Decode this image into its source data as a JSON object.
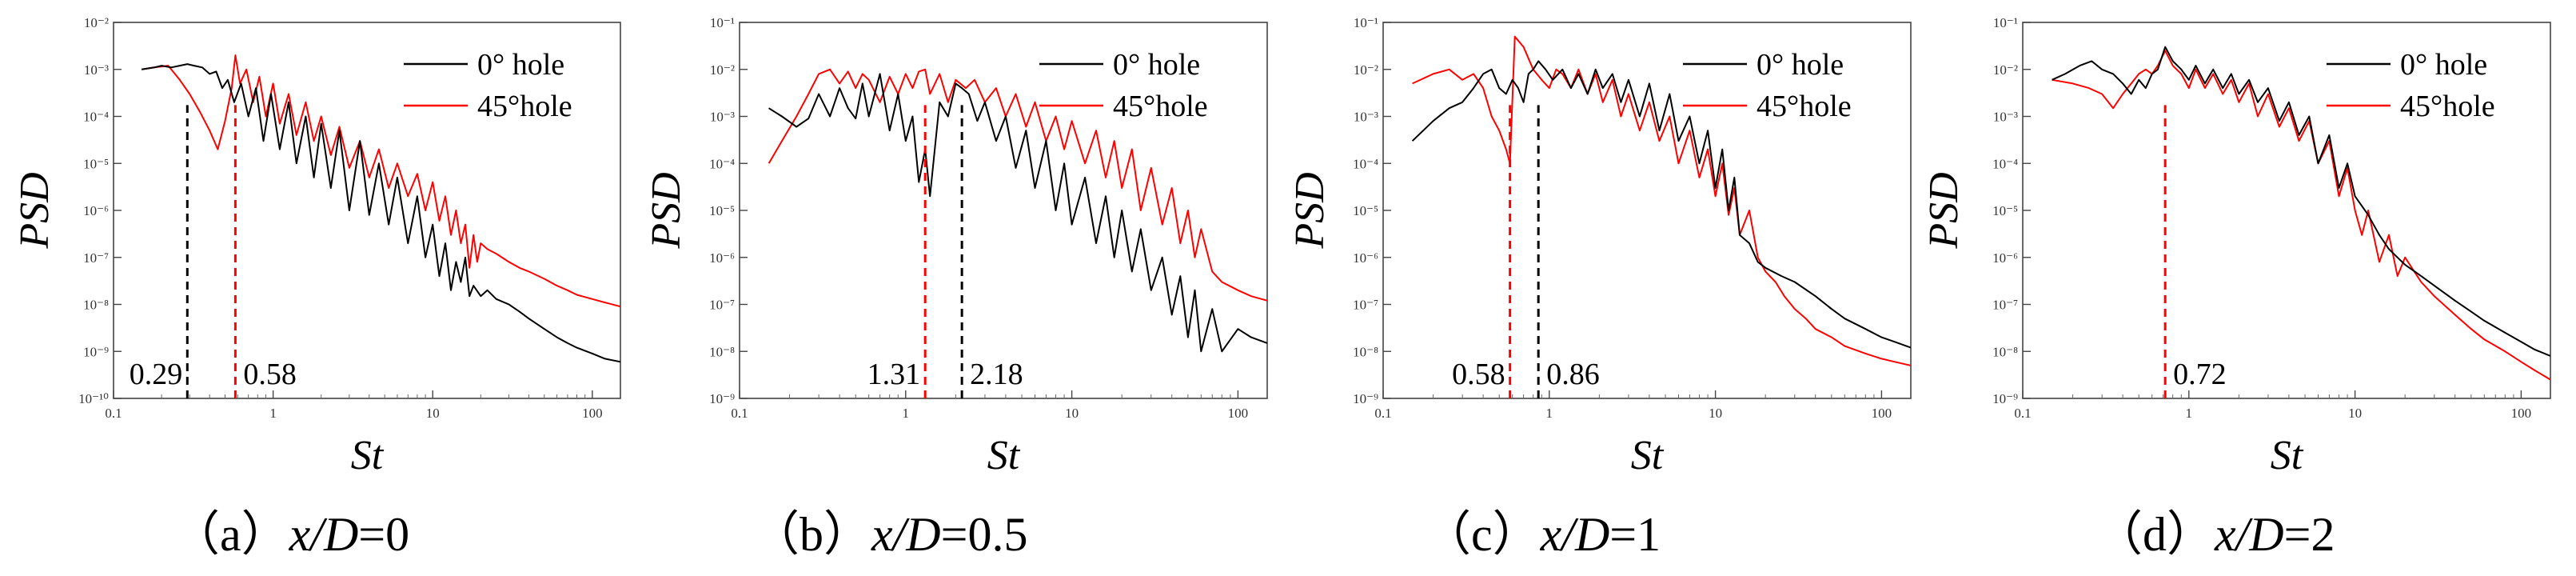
{
  "chart_data": [
    {
      "type": "line",
      "panel": "a",
      "caption": {
        "prefix": "（a）",
        "var": "x/D",
        "eq": "=0"
      },
      "xlabel": "St",
      "ylabel": "PSD",
      "xscale": "log",
      "yscale": "log",
      "xlim": [
        0.1,
        150
      ],
      "ylim": [
        1e-10,
        0.01
      ],
      "xticks": [
        "0.1",
        "1",
        "10",
        "100"
      ],
      "yticks": [
        "10⁻¹⁰",
        "10⁻⁹",
        "10⁻⁸",
        "10⁻⁷",
        "10⁻⁶",
        "10⁻⁵",
        "10⁻⁴",
        "10⁻³",
        "10⁻²"
      ],
      "series": [
        {
          "name": "0° hole",
          "color": "#000000",
          "x": [
            0.15,
            0.18,
            0.2,
            0.23,
            0.26,
            0.29,
            0.32,
            0.36,
            0.4,
            0.44,
            0.48,
            0.52,
            0.57,
            0.63,
            0.7,
            0.78,
            0.87,
            0.97,
            1.1,
            1.25,
            1.4,
            1.6,
            1.8,
            2.0,
            2.3,
            2.6,
            3.0,
            3.5,
            4.0,
            4.6,
            5.3,
            6.0,
            7.0,
            8.0,
            9.0,
            10.0,
            11.0,
            12.0,
            13.0,
            14.0,
            15.0,
            16.0,
            17.0,
            18.0,
            20.0,
            22.0,
            25.0,
            30.0,
            35.0,
            40.0,
            50.0,
            60.0,
            70.0,
            80.0,
            100.0,
            120.0,
            150.0
          ],
          "y": [
            0.001,
            0.0011,
            0.0012,
            0.0011,
            0.0012,
            0.0013,
            0.0012,
            0.0011,
            0.0008,
            0.0009,
            0.0004,
            0.0006,
            0.0002,
            0.0005,
            0.0001,
            0.0004,
            3e-05,
            0.0003,
            2e-05,
            0.0002,
            1e-05,
            0.0001,
            5e-06,
            7e-05,
            3e-06,
            5e-05,
            1e-06,
            3e-05,
            8e-07,
            1e-05,
            5e-07,
            5e-06,
            2e-07,
            2e-06,
            1e-07,
            5e-07,
            4e-08,
            2e-07,
            2e-08,
            8e-08,
            3e-08,
            1e-07,
            1.5e-08,
            2.5e-08,
            1.5e-08,
            2e-08,
            1.3e-08,
            1e-08,
            7e-09,
            5e-09,
            3e-09,
            2e-09,
            1.5e-09,
            1.2e-09,
            9e-10,
            7e-10,
            6e-10
          ]
        },
        {
          "name": "45°hole",
          "color": "#ff0000",
          "x": [
            0.15,
            0.18,
            0.22,
            0.26,
            0.3,
            0.35,
            0.4,
            0.45,
            0.5,
            0.55,
            0.58,
            0.62,
            0.68,
            0.75,
            0.82,
            0.9,
            1.0,
            1.1,
            1.25,
            1.4,
            1.6,
            1.8,
            2.0,
            2.3,
            2.6,
            3.0,
            3.5,
            4.0,
            4.6,
            5.3,
            6.0,
            7.0,
            8.0,
            9.0,
            10.0,
            11.0,
            12.0,
            13.0,
            14.0,
            15.0,
            16.0,
            17.0,
            18.0,
            19.0,
            20.0,
            22.0,
            25.0,
            30.0,
            35.0,
            40.0,
            50.0,
            60.0,
            70.0,
            80.0,
            100.0,
            120.0,
            150.0
          ],
          "y": [
            0.001,
            0.0011,
            0.0012,
            0.0006,
            0.0003,
            0.00012,
            5e-05,
            2e-05,
            8e-05,
            0.0004,
            0.002,
            0.0005,
            0.001,
            0.0002,
            0.0007,
            0.0001,
            0.0005,
            7e-05,
            0.0003,
            4e-05,
            0.0002,
            3e-05,
            0.0001,
            1.5e-05,
            6e-05,
            8e-06,
            3e-05,
            5e-06,
            2e-05,
            3e-06,
            1e-05,
            2e-06,
            6e-06,
            1e-06,
            4e-06,
            6e-07,
            2e-06,
            3e-07,
            1e-06,
            2e-07,
            5e-07,
            6e-08,
            3e-07,
            8e-08,
            2e-07,
            1.5e-07,
            1.2e-07,
            8e-08,
            6e-08,
            5e-08,
            3.5e-08,
            2.5e-08,
            2e-08,
            1.6e-08,
            1.3e-08,
            1.1e-08,
            9e-09
          ]
        }
      ],
      "markers": [
        {
          "x": 0.29,
          "label": "0.29",
          "color": "#000000"
        },
        {
          "x": 0.58,
          "label": "0.58",
          "color": "#ff0000"
        }
      ]
    },
    {
      "type": "line",
      "panel": "b",
      "caption": {
        "prefix": "（b）",
        "var": "x/D",
        "eq": "=0.5"
      },
      "xlabel": "St",
      "ylabel": "PSD",
      "xscale": "log",
      "yscale": "log",
      "xlim": [
        0.1,
        150
      ],
      "ylim": [
        1e-09,
        0.1
      ],
      "xticks": [
        "0.1",
        "1",
        "10",
        "100"
      ],
      "yticks": [
        "10⁻⁹",
        "10⁻⁸",
        "10⁻⁷",
        "10⁻⁶",
        "10⁻⁵",
        "10⁻⁴",
        "10⁻³",
        "10⁻²",
        "10⁻¹"
      ],
      "series": [
        {
          "name": "0° hole",
          "color": "#000000",
          "x": [
            0.15,
            0.18,
            0.22,
            0.26,
            0.3,
            0.35,
            0.4,
            0.45,
            0.5,
            0.55,
            0.6,
            0.7,
            0.8,
            0.9,
            1.0,
            1.1,
            1.2,
            1.31,
            1.4,
            1.6,
            1.8,
            2.0,
            2.18,
            2.4,
            2.7,
            3.0,
            3.5,
            4.0,
            4.6,
            5.3,
            6.0,
            7.0,
            8.0,
            9.0,
            10.0,
            12.0,
            14.0,
            16.0,
            18.0,
            20.0,
            23.0,
            26.0,
            30.0,
            35.0,
            40.0,
            45.0,
            50.0,
            55.0,
            60.0,
            70.0,
            80.0,
            100.0,
            120.0,
            150.0
          ],
          "y": [
            0.0015,
            0.001,
            0.0006,
            0.0009,
            0.003,
            0.001,
            0.004,
            0.0015,
            0.0009,
            0.005,
            0.001,
            0.008,
            0.0005,
            0.003,
            0.0003,
            0.001,
            4e-05,
            0.0002,
            2e-05,
            0.002,
            0.001,
            0.005,
            0.004,
            0.003,
            0.0008,
            0.002,
            0.0003,
            0.001,
            8e-05,
            0.0005,
            3e-05,
            0.0003,
            1e-05,
            0.0001,
            5e-06,
            5e-05,
            2e-06,
            2e-05,
            1e-06,
            1e-05,
            5e-07,
            4e-06,
            2e-07,
            1e-06,
            6e-08,
            4e-07,
            2e-08,
            2e-07,
            1e-08,
            8e-08,
            1e-08,
            3e-08,
            2e-08,
            1.5e-08
          ]
        },
        {
          "name": "45°hole",
          "color": "#ff0000",
          "x": [
            0.15,
            0.18,
            0.22,
            0.26,
            0.3,
            0.35,
            0.4,
            0.45,
            0.5,
            0.55,
            0.6,
            0.7,
            0.8,
            0.9,
            1.0,
            1.1,
            1.2,
            1.31,
            1.4,
            1.6,
            1.8,
            2.0,
            2.3,
            2.6,
            3.0,
            3.5,
            4.0,
            4.6,
            5.3,
            6.0,
            7.0,
            8.0,
            9.0,
            10.0,
            12.0,
            14.0,
            16.0,
            18.0,
            20.0,
            23.0,
            26.0,
            30.0,
            35.0,
            40.0,
            45.0,
            50.0,
            55.0,
            60.0,
            70.0,
            80.0,
            100.0,
            120.0,
            150.0
          ],
          "y": [
            0.0001,
            0.0003,
            0.001,
            0.003,
            0.008,
            0.01,
            0.005,
            0.009,
            0.004,
            0.008,
            0.006,
            0.002,
            0.007,
            0.003,
            0.008,
            0.004,
            0.009,
            0.01,
            0.003,
            0.008,
            0.002,
            0.006,
            0.004,
            0.006,
            0.002,
            0.004,
            0.001,
            0.003,
            0.0006,
            0.002,
            0.0003,
            0.001,
            0.0002,
            0.0008,
            0.0001,
            0.0005,
            5e-05,
            0.0003,
            3e-05,
            0.0002,
            1e-05,
            8e-05,
            5e-06,
            3e-05,
            2e-06,
            1e-05,
            1e-06,
            4e-06,
            5e-07,
            3e-07,
            2e-07,
            1.5e-07,
            1.2e-07
          ]
        }
      ],
      "markers": [
        {
          "x": 1.31,
          "label": "1.31",
          "color": "#ff0000"
        },
        {
          "x": 2.18,
          "label": "2.18",
          "color": "#000000"
        }
      ]
    },
    {
      "type": "line",
      "panel": "c",
      "caption": {
        "prefix": "（c）",
        "var": "x/D",
        "eq": "=1"
      },
      "xlabel": "St",
      "ylabel": "PSD",
      "xscale": "log",
      "yscale": "log",
      "xlim": [
        0.1,
        150
      ],
      "ylim": [
        1e-09,
        0.1
      ],
      "xticks": [
        "0.1",
        "1",
        "10",
        "100"
      ],
      "yticks": [
        "10⁻⁹",
        "10⁻⁸",
        "10⁻⁷",
        "10⁻⁶",
        "10⁻⁵",
        "10⁻⁴",
        "10⁻³",
        "10⁻²",
        "10⁻¹"
      ],
      "series": [
        {
          "name": "0° hole",
          "color": "#000000",
          "x": [
            0.15,
            0.2,
            0.25,
            0.3,
            0.35,
            0.4,
            0.45,
            0.5,
            0.55,
            0.6,
            0.65,
            0.7,
            0.75,
            0.8,
            0.86,
            0.95,
            1.05,
            1.2,
            1.35,
            1.5,
            1.7,
            1.9,
            2.1,
            2.4,
            2.7,
            3.0,
            3.5,
            4.0,
            4.6,
            5.3,
            6.0,
            7.0,
            8.0,
            9.0,
            10.0,
            11.0,
            12.0,
            13.0,
            14.0,
            16.0,
            18.0,
            20.0,
            25.0,
            30.0,
            40.0,
            50.0,
            60.0,
            80.0,
            100.0,
            120.0,
            150.0
          ],
          "y": [
            0.0003,
            0.0008,
            0.0015,
            0.002,
            0.004,
            0.008,
            0.01,
            0.004,
            0.003,
            0.006,
            0.004,
            0.002,
            0.008,
            0.01,
            0.015,
            0.01,
            0.006,
            0.01,
            0.004,
            0.008,
            0.003,
            0.01,
            0.004,
            0.008,
            0.002,
            0.006,
            0.001,
            0.005,
            0.0005,
            0.003,
            0.0003,
            0.001,
            0.0001,
            0.0005,
            3e-05,
            0.0002,
            1e-05,
            5e-05,
            3e-06,
            2e-06,
            8e-07,
            6e-07,
            4e-07,
            3e-07,
            1.5e-07,
            8e-08,
            5e-08,
            3e-08,
            2e-08,
            1.6e-08,
            1.2e-08
          ]
        },
        {
          "name": "45°hole",
          "color": "#ff0000",
          "x": [
            0.15,
            0.2,
            0.25,
            0.3,
            0.35,
            0.4,
            0.45,
            0.5,
            0.55,
            0.58,
            0.62,
            0.7,
            0.8,
            0.9,
            1.0,
            1.1,
            1.2,
            1.35,
            1.5,
            1.7,
            1.9,
            2.1,
            2.4,
            2.7,
            3.0,
            3.5,
            4.0,
            4.6,
            5.3,
            6.0,
            7.0,
            8.0,
            9.0,
            10.0,
            11.0,
            12.0,
            13.0,
            14.0,
            16.0,
            18.0,
            20.0,
            23.0,
            26.0,
            30.0,
            35.0,
            40.0,
            50.0,
            60.0,
            80.0,
            100.0,
            120.0,
            150.0
          ],
          "y": [
            0.005,
            0.008,
            0.01,
            0.006,
            0.008,
            0.004,
            0.001,
            0.0005,
            0.0002,
            0.0001,
            0.05,
            0.03,
            0.01,
            0.006,
            0.004,
            0.01,
            0.008,
            0.004,
            0.01,
            0.003,
            0.008,
            0.002,
            0.006,
            0.001,
            0.003,
            0.0005,
            0.002,
            0.0003,
            0.001,
            0.0001,
            0.0005,
            5e-05,
            0.0002,
            2e-05,
            0.0001,
            8e-06,
            3e-05,
            3e-06,
            1e-05,
            1e-06,
            5e-07,
            3e-07,
            1.5e-07,
            8e-08,
            5e-08,
            3e-08,
            2e-08,
            1.3e-08,
            9e-09,
            7e-09,
            6e-09,
            5e-09
          ]
        }
      ],
      "markers": [
        {
          "x": 0.58,
          "label": "0.58",
          "color": "#ff0000"
        },
        {
          "x": 0.86,
          "label": "0.86",
          "color": "#000000"
        }
      ]
    },
    {
      "type": "line",
      "panel": "d",
      "caption": {
        "prefix": "（d）",
        "var": "x/D",
        "eq": "=2"
      },
      "xlabel": "St",
      "ylabel": "PSD",
      "xscale": "log",
      "yscale": "log",
      "xlim": [
        0.1,
        150
      ],
      "ylim": [
        1e-09,
        0.1
      ],
      "xticks": [
        "0.1",
        "1",
        "10",
        "100"
      ],
      "yticks": [
        "10⁻⁹",
        "10⁻⁸",
        "10⁻⁷",
        "10⁻⁶",
        "10⁻⁵",
        "10⁻⁴",
        "10⁻³",
        "10⁻²",
        "10⁻¹"
      ],
      "series": [
        {
          "name": "0° hole",
          "color": "#000000",
          "x": [
            0.15,
            0.18,
            0.22,
            0.26,
            0.3,
            0.35,
            0.4,
            0.45,
            0.5,
            0.55,
            0.6,
            0.65,
            0.72,
            0.8,
            0.9,
            1.0,
            1.1,
            1.25,
            1.4,
            1.6,
            1.8,
            2.0,
            2.3,
            2.6,
            3.0,
            3.5,
            4.0,
            4.6,
            5.3,
            6.0,
            7.0,
            8.0,
            9.0,
            10.0,
            12.0,
            14.0,
            16.0,
            18.0,
            20.0,
            25.0,
            30.0,
            40.0,
            50.0,
            60.0,
            80.0,
            100.0,
            120.0,
            150.0
          ],
          "y": [
            0.006,
            0.008,
            0.012,
            0.015,
            0.01,
            0.008,
            0.005,
            0.003,
            0.006,
            0.004,
            0.008,
            0.01,
            0.03,
            0.015,
            0.01,
            0.006,
            0.012,
            0.005,
            0.01,
            0.004,
            0.008,
            0.003,
            0.006,
            0.002,
            0.004,
            0.0008,
            0.002,
            0.0004,
            0.001,
            0.0001,
            0.0004,
            3e-05,
            0.0001,
            2e-05,
            8e-06,
            3e-06,
            1.5e-06,
            1e-06,
            7e-07,
            4e-07,
            2.5e-07,
            1.2e-07,
            7e-08,
            4.5e-08,
            2.5e-08,
            1.6e-08,
            1.1e-08,
            8e-09
          ]
        },
        {
          "name": "45°hole",
          "color": "#ff0000",
          "x": [
            0.15,
            0.2,
            0.25,
            0.3,
            0.35,
            0.4,
            0.45,
            0.5,
            0.55,
            0.6,
            0.65,
            0.72,
            0.8,
            0.9,
            1.0,
            1.1,
            1.25,
            1.4,
            1.6,
            1.8,
            2.0,
            2.3,
            2.6,
            3.0,
            3.5,
            4.0,
            4.6,
            5.3,
            6.0,
            7.0,
            8.0,
            9.0,
            10.0,
            11.0,
            12.0,
            14.0,
            16.0,
            18.0,
            20.0,
            25.0,
            30.0,
            40.0,
            50.0,
            60.0,
            80.0,
            100.0,
            120.0,
            150.0
          ],
          "y": [
            0.006,
            0.005,
            0.004,
            0.003,
            0.0015,
            0.003,
            0.005,
            0.008,
            0.01,
            0.008,
            0.012,
            0.025,
            0.012,
            0.008,
            0.004,
            0.01,
            0.004,
            0.008,
            0.003,
            0.006,
            0.002,
            0.005,
            0.001,
            0.003,
            0.0006,
            0.0015,
            0.0003,
            0.0008,
            0.0001,
            0.0003,
            2e-05,
            8e-05,
            1e-05,
            3e-06,
            1e-05,
            8e-07,
            3e-06,
            4e-07,
            1e-06,
            3e-07,
            1.5e-07,
            6e-08,
            3e-08,
            1.8e-08,
            1e-08,
            6e-09,
            4e-09,
            2.5e-09
          ]
        }
      ],
      "markers": [
        {
          "x": 0.72,
          "label": "0.72",
          "color": "#ff0000"
        }
      ]
    }
  ]
}
